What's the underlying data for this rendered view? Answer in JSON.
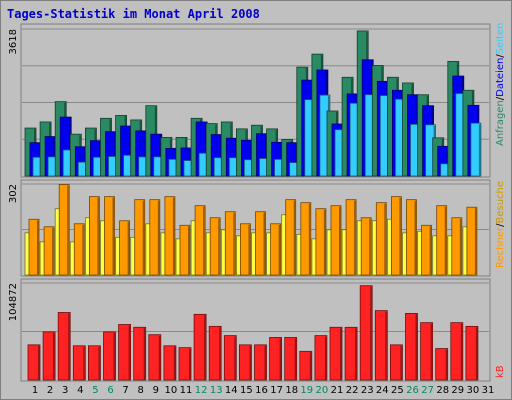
{
  "title": "Tages-Statistik im Monat April 2008",
  "colors": {
    "anfragen": "#2a8a64",
    "dateien": "#0000ee",
    "seiten": "#33ccff",
    "besuche": "#ffff44",
    "rechner": "#ff9900",
    "kb": "#ff2222",
    "weekend_label": "#008866",
    "weekday_label": "#000000"
  },
  "chart_data": [
    {
      "type": "bar",
      "panel": "top",
      "ymax_label": "3618",
      "ymax": 3618,
      "categories": [
        "1",
        "2",
        "3",
        "4",
        "5",
        "6",
        "7",
        "8",
        "9",
        "10",
        "11",
        "12",
        "13",
        "14",
        "15",
        "16",
        "17",
        "18",
        "19",
        "20",
        "21",
        "22",
        "23",
        "24",
        "25",
        "26",
        "27",
        "28",
        "29",
        "30",
        "31"
      ],
      "weekend_days": [
        "5",
        "6",
        "12",
        "13",
        "19",
        "20",
        "26",
        "27"
      ],
      "side_labels": [
        "Anfragen",
        "Dateien",
        "Seiten"
      ],
      "series": [
        {
          "name": "Anfragen",
          "values": [
            1180,
            1330,
            1830,
            1030,
            1180,
            1420,
            1490,
            1380,
            1730,
            950,
            950,
            1420,
            1290,
            1330,
            1160,
            1250,
            1160,
            900,
            2680,
            3000,
            1600,
            2430,
            3570,
            2720,
            2430,
            2290,
            2000,
            940,
            2820,
            2110,
            0
          ]
        },
        {
          "name": "Dateien",
          "values": [
            820,
            970,
            1450,
            720,
            870,
            1090,
            1230,
            1110,
            1030,
            680,
            690,
            1330,
            1020,
            930,
            880,
            1040,
            830,
            820,
            2360,
            2610,
            1280,
            2020,
            2860,
            2330,
            2110,
            2000,
            1730,
            730,
            2460,
            1740,
            0
          ]
        },
        {
          "name": "Seiten",
          "values": [
            460,
            470,
            640,
            340,
            460,
            480,
            510,
            470,
            470,
            410,
            380,
            560,
            450,
            450,
            400,
            430,
            410,
            330,
            1880,
            1990,
            1140,
            1790,
            2000,
            1980,
            1890,
            1270,
            1260,
            300,
            2030,
            1300,
            0
          ]
        }
      ]
    },
    {
      "type": "bar",
      "panel": "middle",
      "ymax_label": "302",
      "ymax": 302,
      "side_labels": [
        "Rechner",
        "Besuche"
      ],
      "series": [
        {
          "name": "Besuche",
          "values": [
            140,
            110,
            220,
            110,
            190,
            180,
            125,
            125,
            170,
            140,
            120,
            180,
            140,
            150,
            130,
            140,
            140,
            200,
            135,
            120,
            150,
            150,
            180,
            180,
            185,
            140,
            145,
            130,
            130,
            160,
            0
          ]
        },
        {
          "name": "Rechner",
          "values": [
            185,
            160,
            300,
            170,
            260,
            260,
            180,
            250,
            250,
            260,
            165,
            230,
            190,
            210,
            170,
            210,
            170,
            250,
            240,
            220,
            230,
            250,
            190,
            240,
            260,
            250,
            165,
            230,
            190,
            225,
            0
          ]
        }
      ]
    },
    {
      "type": "bar",
      "panel": "bottom",
      "ymax_label": "104872",
      "ymax": 104872,
      "side_labels": [
        "kB"
      ],
      "series": [
        {
          "name": "kB",
          "values": [
            38000,
            52000,
            73000,
            37000,
            37000,
            52000,
            60000,
            57000,
            49000,
            37000,
            35000,
            71000,
            58000,
            48000,
            38000,
            38000,
            46000,
            46000,
            31000,
            48000,
            57000,
            57000,
            102000,
            75000,
            38000,
            72000,
            62000,
            34000,
            62000,
            58000,
            0
          ]
        }
      ]
    }
  ]
}
